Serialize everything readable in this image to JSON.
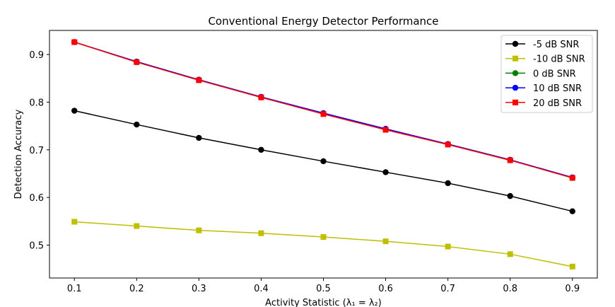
{
  "chart_data": {
    "type": "line",
    "title": "Conventional Energy Detector Performance",
    "xlabel": "Activity Statistic (λ₁ = λ₂)",
    "ylabel": "Detection Accuracy",
    "xlim": [
      0.06,
      0.94
    ],
    "ylim": [
      0.431,
      0.9505
    ],
    "x": [
      0.1,
      0.2,
      0.3,
      0.4,
      0.5,
      0.6,
      0.7,
      0.8,
      0.9
    ],
    "xticks": [
      0.1,
      0.2,
      0.3,
      0.4,
      0.5,
      0.6,
      0.7,
      0.8,
      0.9
    ],
    "yticks": [
      0.5,
      0.6,
      0.7,
      0.8,
      0.9
    ],
    "grid": false,
    "legend_position": "top-right",
    "series": [
      {
        "name": "-5 dB SNR",
        "color": "#000000",
        "marker": "circle",
        "values": [
          0.782,
          0.753,
          0.725,
          0.7,
          0.676,
          0.653,
          0.63,
          0.603,
          0.571
        ]
      },
      {
        "name": "-10 dB SNR",
        "color": "#bfbf00",
        "marker": "square",
        "values": [
          0.549,
          0.54,
          0.531,
          0.525,
          0.517,
          0.508,
          0.497,
          0.481,
          0.455
        ]
      },
      {
        "name": "0 dB SNR",
        "color": "#008000",
        "marker": "circle",
        "values": [
          0.926,
          0.884,
          0.847,
          0.81,
          0.776,
          0.743,
          0.712,
          0.679,
          0.641
        ]
      },
      {
        "name": "10 dB SNR",
        "color": "#0000ff",
        "marker": "circle",
        "values": [
          0.926,
          0.885,
          0.847,
          0.811,
          0.777,
          0.744,
          0.712,
          0.679,
          0.642
        ]
      },
      {
        "name": "20 dB SNR",
        "color": "#ff0000",
        "marker": "square",
        "values": [
          0.926,
          0.884,
          0.846,
          0.81,
          0.775,
          0.742,
          0.711,
          0.678,
          0.641
        ]
      }
    ]
  }
}
